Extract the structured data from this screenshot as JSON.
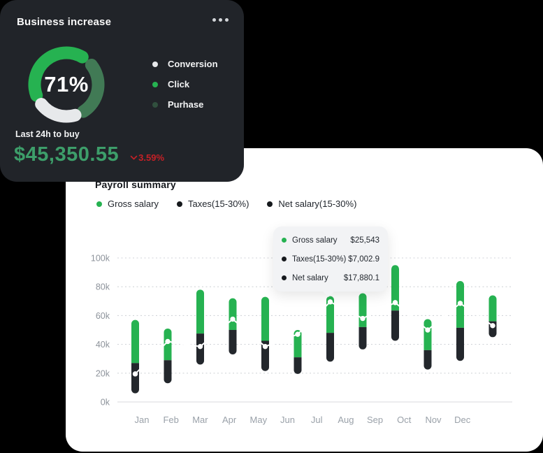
{
  "business_card": {
    "title": "Business increase",
    "donut_center": "71%",
    "legend": [
      {
        "label": "Conversion",
        "color": "#e7e9eb"
      },
      {
        "label": "Click",
        "color": "#26b251"
      },
      {
        "label": "Purhase",
        "color": "#31503e"
      }
    ],
    "footer_label": "Last 24h to buy",
    "amount": "$45,350.55",
    "change": {
      "value": "3.59%",
      "direction": "down",
      "color": "#c62026"
    }
  },
  "payroll_card": {
    "title": "Payroll summary",
    "legend": [
      {
        "label": "Gross salary",
        "color": "#26b251"
      },
      {
        "label": "Taxes(15-30%)",
        "color": "#16191d"
      },
      {
        "label": "Net salary(15-30%)",
        "color": "#16191d"
      }
    ],
    "tooltip": {
      "rows": [
        {
          "label": "Gross salary",
          "value": "$25,543",
          "color": "#26b251"
        },
        {
          "label": "Taxes(15-30%)",
          "value": "$7,002.9",
          "color": "#16191d"
        },
        {
          "label": "Net salary",
          "value": "$17,880.1",
          "color": "#16191d"
        }
      ]
    }
  },
  "chart_data": [
    {
      "type": "pie",
      "subtype": "donut-segments-rounded",
      "title": "Business increase",
      "center_label": "71%",
      "segments": [
        {
          "name": "Click",
          "color": "#26b251",
          "start_deg": 250,
          "end_deg": 390
        },
        {
          "name": "Purhase",
          "color": "#417a55",
          "start_deg": 52,
          "end_deg": 148
        },
        {
          "name": "Conversion",
          "color": "#e7e9eb",
          "start_deg": 164,
          "end_deg": 232
        }
      ]
    },
    {
      "type": "bar",
      "subtype": "floating-range-bars-with-line",
      "title": "Payroll summary",
      "categories": [
        "Jan",
        "Feb",
        "Mar",
        "Apr",
        "May",
        "Jun",
        "Jul",
        "Aug",
        "Sep",
        "Oct",
        "Nov",
        "Dec"
      ],
      "unit": "thousand-dollars",
      "ylim": [
        0,
        100
      ],
      "ytick_labels": [
        "0k",
        "20k",
        "40k",
        "60k",
        "80k",
        "100k"
      ],
      "grid": true,
      "legend_position": "top-left",
      "hovered_category": "Jul",
      "series": [
        {
          "name": "Gross salary",
          "render": "upper-range-bar",
          "color": "#26b251",
          "low": [
            27,
            29,
            47.5,
            50,
            42.5,
            31,
            48,
            52,
            63.5,
            36,
            51.5,
            56
          ],
          "high": [
            57,
            51,
            78,
            72,
            73,
            50,
            73.5,
            75.5,
            95,
            57.5,
            84,
            74
          ]
        },
        {
          "name": "Taxes(15-30%)",
          "render": "lower-range-bar",
          "color": "#23272c",
          "low": [
            6,
            13,
            26,
            33,
            21.5,
            19.5,
            28,
            36.5,
            42.5,
            22.5,
            28.5,
            45
          ],
          "high": [
            27,
            29,
            47.5,
            50,
            42.5,
            31,
            48,
            52,
            63.5,
            36,
            51.5,
            56
          ]
        },
        {
          "name": "Net salary(15-30%)",
          "render": "line-with-dots",
          "color": "#ffffff",
          "values": [
            19.5,
            42,
            38.5,
            57.5,
            38.5,
            47,
            69.5,
            58,
            69,
            50,
            68.5,
            53
          ]
        }
      ]
    }
  ]
}
